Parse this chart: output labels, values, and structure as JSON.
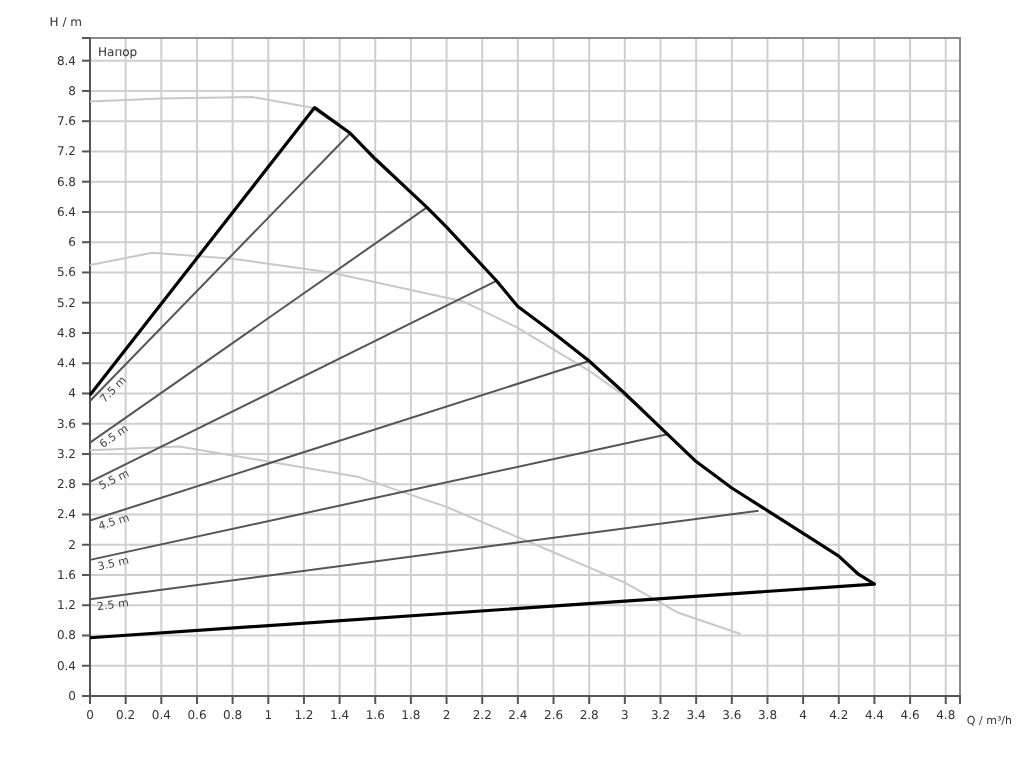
{
  "chart_data": {
    "type": "line",
    "xlabel": "Q / m³/h",
    "ylabel": "H / m",
    "annotations": [
      "Напор"
    ],
    "xlim": [
      0,
      4.88
    ],
    "ylim": [
      0,
      8.7
    ],
    "xticks": [
      0,
      0.2,
      0.4,
      0.6,
      0.8,
      1,
      1.2,
      1.4,
      1.6,
      1.8,
      2,
      2.2,
      2.4,
      2.6,
      2.8,
      3,
      3.2,
      3.4,
      3.6,
      3.8,
      4,
      4.2,
      4.4,
      4.6,
      4.8
    ],
    "yticks": [
      0,
      0.4,
      0.8,
      1.2,
      1.6,
      2,
      2.4,
      2.8,
      3.2,
      3.6,
      4,
      4.4,
      4.8,
      5.2,
      5.6,
      6,
      6.4,
      6.8,
      7.2,
      7.6,
      8,
      8.4
    ],
    "grid": true,
    "marker": "none",
    "line_style": "solid",
    "series": [
      {
        "color": "#c8c8c8",
        "x": [
          0,
          0.4,
          0.91,
          1.24,
          1.46,
          1.89
        ],
        "values": [
          7.86,
          7.9,
          7.92,
          7.78,
          7.44,
          6.46
        ]
      },
      {
        "color": "#c8c8c8",
        "x": [
          0,
          0.35,
          0.8,
          1.35,
          2.09,
          2.39,
          2.8,
          3.1
        ],
        "values": [
          5.7,
          5.86,
          5.78,
          5.6,
          5.22,
          4.88,
          4.3,
          3.8
        ]
      },
      {
        "color": "#c8c8c8",
        "x": [
          0,
          0.5,
          1,
          1.5,
          2,
          2.5,
          3,
          3.3,
          3.65
        ],
        "values": [
          3.25,
          3.3,
          3.1,
          2.9,
          2.5,
          2,
          1.5,
          1.1,
          0.82
        ]
      },
      {
        "name": "2.5 m",
        "color": "#555555",
        "x": [
          0,
          3.75
        ],
        "values": [
          1.28,
          2.45
        ]
      },
      {
        "name": "3.5 m",
        "color": "#555555",
        "x": [
          0,
          3.24
        ],
        "values": [
          1.8,
          3.46
        ]
      },
      {
        "name": "4.5 m",
        "color": "#555555",
        "x": [
          0,
          2.8
        ],
        "values": [
          2.32,
          4.43
        ]
      },
      {
        "name": "5.5 m",
        "color": "#555555",
        "x": [
          0,
          2.28
        ],
        "values": [
          2.83,
          5.49
        ]
      },
      {
        "name": "6.5 m",
        "color": "#555555",
        "x": [
          0,
          1.89
        ],
        "values": [
          3.35,
          6.46
        ]
      },
      {
        "name": "7.5 m",
        "color": "#555555",
        "x": [
          0,
          1.46
        ],
        "values": [
          3.9,
          7.44
        ]
      },
      {
        "color": "#000000",
        "x": [
          0,
          1.26,
          1.46,
          1.6,
          1.89,
          2.0,
          2.28,
          2.4,
          2.6,
          2.8,
          3.0,
          3.24,
          3.4,
          3.6,
          3.8,
          4.06,
          4.2,
          4.31,
          4.4,
          0
        ],
        "values": [
          3.98,
          7.78,
          7.44,
          7.1,
          6.46,
          6.2,
          5.49,
          5.15,
          4.8,
          4.43,
          4.0,
          3.46,
          3.1,
          2.75,
          2.45,
          2.06,
          1.85,
          1.61,
          1.48,
          0.77
        ]
      }
    ]
  }
}
